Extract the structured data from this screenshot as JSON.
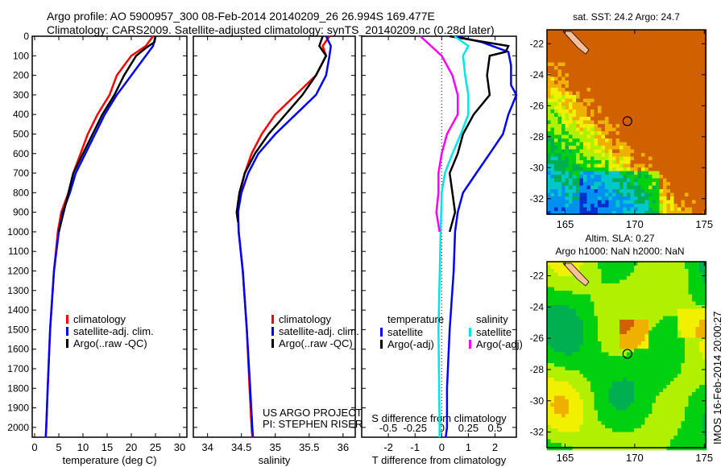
{
  "title_line1": "Argo profile: AO 5900957_300 08-Feb-2014 20140209_26 26.994S 169.477E",
  "title_line2": "Climatology: CARS2009. Satellite-adjusted climatology: synTS_20140209.nc (0.28d later)",
  "credit_line1": "US ARGO PROJECT",
  "credit_line2": "PI: STEPHEN RISER",
  "timestamp": "IMOS 16-Feb-2014 20:00:27",
  "colors": {
    "climatology": "#ff0000",
    "satellite": "#0000ff",
    "argo": "#000000",
    "s_satellite": "#00e5e5",
    "s_argo": "#ff00ff"
  },
  "chart_data": [
    {
      "type": "line",
      "id": "temperature",
      "xlabel": "temperature (deg C)",
      "ylabel": "",
      "xlim": [
        -0.5,
        31.5
      ],
      "ylim": [
        0,
        2050
      ],
      "y_inverted": true,
      "xticks": [
        0,
        5,
        10,
        15,
        20,
        25,
        30
      ],
      "yticks": [
        0,
        100,
        200,
        300,
        400,
        500,
        600,
        700,
        800,
        900,
        1000,
        1100,
        1200,
        1300,
        1400,
        1500,
        1600,
        1700,
        1800,
        1900,
        2000
      ],
      "legend": [
        "climatology",
        "satellite-adj. clim.",
        "Argo(..raw -QC)"
      ],
      "series": [
        {
          "name": "climatology",
          "color": "#ff0000",
          "depth": [
            0,
            50,
            100,
            150,
            200,
            300,
            400,
            500,
            600,
            700,
            800,
            900,
            1000,
            1200,
            1500,
            1800,
            2000,
            2050
          ],
          "values": [
            24.5,
            23,
            20,
            18.5,
            17,
            15.5,
            13,
            11,
            9.5,
            8,
            7,
            5.5,
            4.8,
            4,
            3.2,
            2.7,
            2.4,
            2.3
          ]
        },
        {
          "name": "satellite-adj. clim.",
          "color": "#0000ff",
          "depth": [
            0,
            50,
            100,
            200,
            300,
            400,
            500,
            600,
            700,
            800,
            900,
            1000,
            1200,
            1500,
            1800,
            2000,
            2050
          ],
          "values": [
            25,
            24.5,
            23,
            20,
            17,
            14.5,
            12.5,
            10.5,
            8.5,
            7.3,
            5.8,
            5,
            4,
            3.2,
            2.7,
            2.4,
            2.3
          ]
        },
        {
          "name": "Argo(..raw -QC)",
          "color": "#000000",
          "depth": [
            0,
            30,
            60,
            100,
            200,
            300,
            400,
            500,
            600,
            700,
            800,
            900,
            1000
          ],
          "values": [
            25,
            24.8,
            23,
            21,
            18.5,
            16.5,
            14,
            12,
            10,
            8,
            7,
            6,
            5
          ]
        }
      ]
    },
    {
      "type": "line",
      "id": "salinity",
      "xlabel": "salinity",
      "xlim": [
        33.79,
        36.18
      ],
      "ylim": [
        0,
        2050
      ],
      "y_inverted": true,
      "xticks": [
        34,
        34.5,
        35,
        35.5,
        36
      ],
      "legend": [
        "climatology",
        "satellite-adj. clim.",
        "Argo(..raw -QC)"
      ],
      "series": [
        {
          "name": "climatology",
          "color": "#ff0000",
          "depth": [
            0,
            50,
            100,
            200,
            300,
            400,
            500,
            600,
            700,
            800,
            900,
            1000,
            1200,
            1500,
            1800,
            2000,
            2050
          ],
          "values": [
            35.8,
            35.7,
            35.75,
            35.6,
            35.3,
            35.0,
            34.8,
            34.65,
            34.55,
            34.48,
            34.45,
            34.46,
            34.52,
            34.58,
            34.62,
            34.65,
            34.66
          ]
        },
        {
          "name": "satellite-adj. clim.",
          "color": "#0000ff",
          "depth": [
            0,
            50,
            100,
            200,
            300,
            400,
            500,
            600,
            700,
            800,
            900,
            1000,
            1200,
            1500,
            1800,
            2000,
            2050
          ],
          "values": [
            35.75,
            35.82,
            35.8,
            35.75,
            35.6,
            35.3,
            35.0,
            34.75,
            34.6,
            34.5,
            34.45,
            34.46,
            34.52,
            34.58,
            34.63,
            34.66,
            34.67
          ]
        },
        {
          "name": "Argo(..raw -QC)",
          "color": "#000000",
          "depth": [
            0,
            50,
            100,
            200,
            300,
            400,
            500,
            600,
            700,
            800,
            900,
            950
          ],
          "values": [
            35.7,
            35.65,
            35.75,
            35.6,
            35.4,
            35.15,
            34.9,
            34.7,
            34.55,
            34.47,
            34.43,
            34.45
          ]
        }
      ]
    },
    {
      "type": "line",
      "id": "difference",
      "xlabel": "T difference from climatology",
      "x2label": "S difference from climatology",
      "xlim": [
        -3.0,
        2.8
      ],
      "ylim": [
        0,
        2050
      ],
      "y_inverted": true,
      "xticks": [
        -2,
        -1,
        0,
        1,
        2
      ],
      "x2ticks": [
        -0.5,
        -0.25,
        0,
        0.25,
        0.5
      ],
      "x2_tick_labels": [
        "-0.5",
        "-0.25",
        "0",
        "0.25",
        "0.5"
      ],
      "s_to_t_scale": 4,
      "legend_temperature": {
        "title": "temperature",
        "items": [
          "satellite",
          "Argo(-adj)"
        ]
      },
      "legend_salinity": {
        "title": "salinity",
        "items": [
          "satellite",
          "Argo(-adj)"
        ]
      },
      "series": [
        {
          "name": "temperature satellite",
          "color": "#0000ff",
          "units": "T",
          "depth": [
            0,
            30,
            80,
            150,
            250,
            300,
            400,
            500,
            600,
            700,
            800,
            900,
            1000,
            1200,
            1500,
            1800,
            2000,
            2050
          ],
          "values": [
            0.5,
            1.5,
            2.5,
            2.6,
            2.6,
            2.8,
            2.5,
            2.3,
            1.8,
            1.3,
            0.8,
            0.6,
            0.5,
            0.45,
            0.3,
            0.2,
            0.2,
            0.15
          ]
        },
        {
          "name": "temperature Argo(-adj)",
          "color": "#000000",
          "units": "T",
          "depth": [
            0,
            50,
            80,
            100,
            200,
            300,
            400,
            500,
            600,
            700,
            800,
            900,
            1000
          ],
          "values": [
            0.3,
            2.5,
            2.4,
            1.8,
            1.7,
            1.8,
            1.2,
            0.8,
            0.6,
            0.3,
            0.4,
            0.5,
            0.3
          ]
        },
        {
          "name": "salinity satellite",
          "color": "#00e5e5",
          "units": "S",
          "depth": [
            0,
            50,
            100,
            200,
            300,
            400,
            500,
            600,
            700,
            800,
            1000,
            1500,
            2000,
            2050
          ],
          "values": [
            0.12,
            0.25,
            0.2,
            0.22,
            0.25,
            0.25,
            0.18,
            0.1,
            0.03,
            0,
            -0.01,
            -0.03,
            -0.02,
            -0.02
          ]
        },
        {
          "name": "salinity Argo(-adj)",
          "color": "#ff00ff",
          "units": "S",
          "depth": [
            0,
            50,
            100,
            200,
            300,
            400,
            500,
            600,
            700,
            800,
            900,
            1000
          ],
          "values": [
            -0.2,
            -0.1,
            0.0,
            0.1,
            0.15,
            0.15,
            0.05,
            0,
            -0.03,
            -0.03,
            -0.05,
            -0.02
          ]
        }
      ]
    },
    {
      "type": "heatmap",
      "id": "sst_map",
      "title": "sat. SST: 24.2 Argo: 24.7",
      "xlim": [
        163.7,
        175.1
      ],
      "ylim": [
        -33,
        -21.1
      ],
      "xticks": [
        165,
        170,
        175
      ],
      "yticks": [
        -22,
        -24,
        -26,
        -28,
        -30,
        -32
      ],
      "marker": {
        "lon": 169.477,
        "lat": -26.994
      }
    },
    {
      "type": "heatmap",
      "id": "sla_map",
      "title": "Altim. SLA: 0.27",
      "subtitle": "Argo h1000: NaN h2000: NaN",
      "xlim": [
        163.7,
        175.1
      ],
      "ylim": [
        -33,
        -21.1
      ],
      "xticks": [
        165,
        170,
        175
      ],
      "yticks": [
        -22,
        -24,
        -26,
        -28,
        -30,
        -32
      ],
      "marker": {
        "lon": 169.477,
        "lat": -26.994
      }
    }
  ]
}
